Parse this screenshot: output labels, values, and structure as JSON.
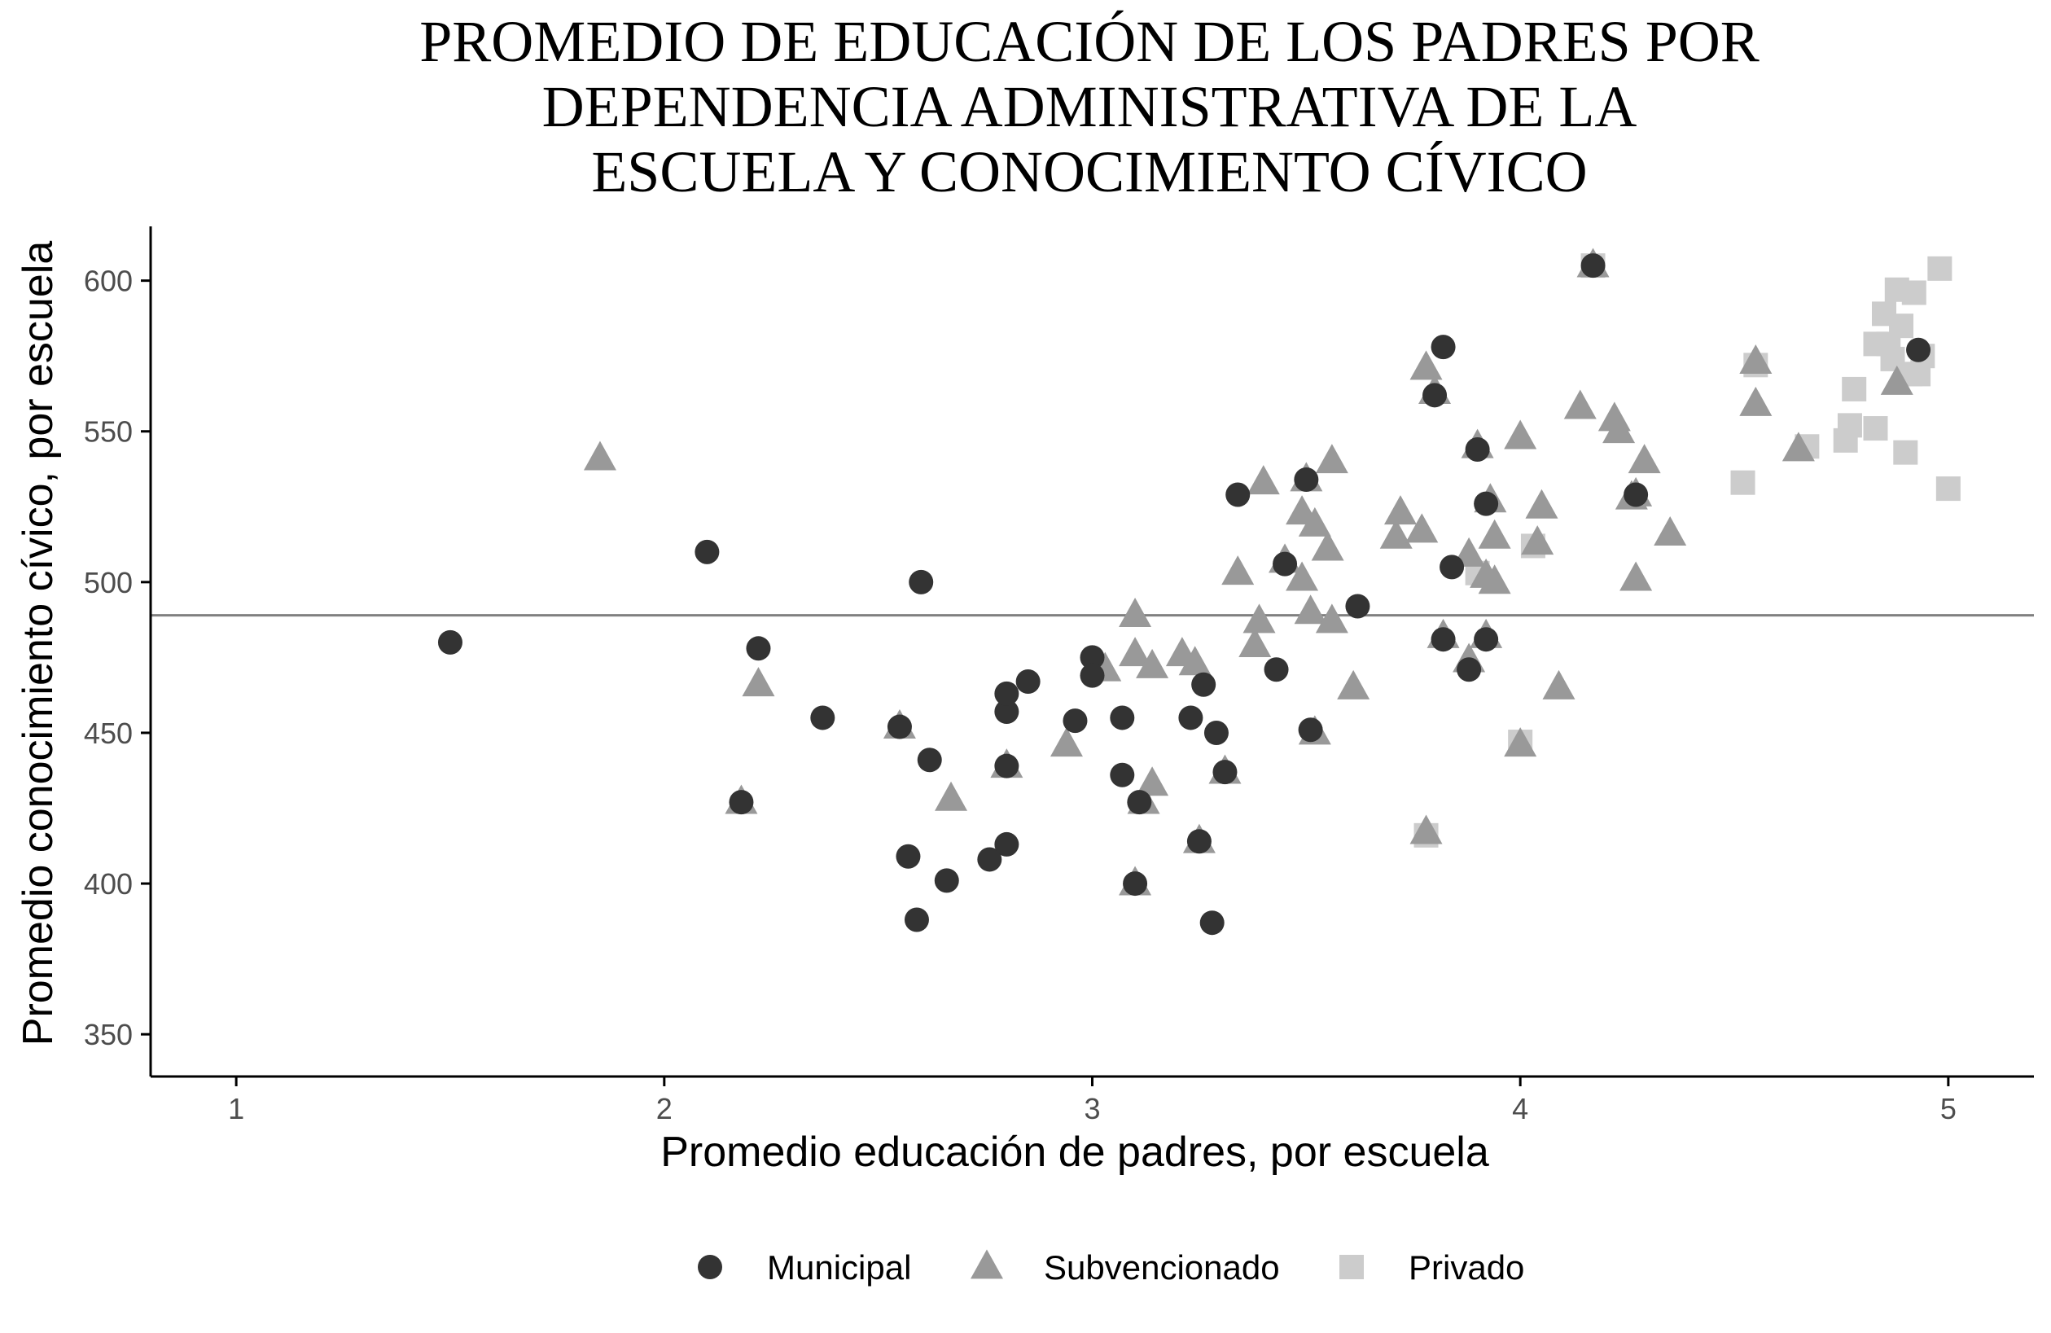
{
  "chart_data": {
    "type": "scatter",
    "title_lines": [
      "PROMEDIO DE EDUCACIÓN DE LOS PADRES POR",
      "DEPENDENCIA ADMINISTRATIVA DE LA",
      "ESCUELA Y CONOCIMIENTO CÍVICO"
    ],
    "xlabel": "Promedio educación de padres, por escuela",
    "ylabel": "Promedio conocimiento cívico, por escuela",
    "xlim": [
      0.8,
      5.2
    ],
    "ylim": [
      336,
      618
    ],
    "xticks": [
      1,
      2,
      3,
      4,
      5
    ],
    "yticks": [
      350,
      400,
      450,
      500,
      550,
      600
    ],
    "reference_line_y": 489,
    "legend_position": "bottom",
    "grid": false,
    "series": [
      {
        "name": "Municipal",
        "shape": "circle",
        "color": "#333333",
        "points": [
          [
            1.5,
            480
          ],
          [
            2.1,
            510
          ],
          [
            2.22,
            478
          ],
          [
            2.37,
            455
          ],
          [
            2.18,
            427
          ],
          [
            2.55,
            452
          ],
          [
            2.6,
            500
          ],
          [
            2.62,
            441
          ],
          [
            2.57,
            409
          ],
          [
            2.59,
            388
          ],
          [
            2.66,
            401
          ],
          [
            2.76,
            408
          ],
          [
            2.8,
            413
          ],
          [
            2.8,
            439
          ],
          [
            2.8,
            457
          ],
          [
            2.8,
            463
          ],
          [
            2.85,
            467
          ],
          [
            2.96,
            454
          ],
          [
            3.0,
            475
          ],
          [
            3.0,
            469
          ],
          [
            3.07,
            455
          ],
          [
            3.07,
            436
          ],
          [
            3.11,
            427
          ],
          [
            3.1,
            400
          ],
          [
            3.23,
            455
          ],
          [
            3.26,
            466
          ],
          [
            3.29,
            450
          ],
          [
            3.25,
            414
          ],
          [
            3.28,
            387
          ],
          [
            3.31,
            437
          ],
          [
            3.34,
            529
          ],
          [
            3.43,
            471
          ],
          [
            3.45,
            506
          ],
          [
            3.5,
            534
          ],
          [
            3.51,
            451
          ],
          [
            3.62,
            492
          ],
          [
            3.8,
            562
          ],
          [
            3.82,
            578
          ],
          [
            3.82,
            481
          ],
          [
            3.84,
            505
          ],
          [
            3.88,
            471
          ],
          [
            3.9,
            544
          ],
          [
            3.92,
            526
          ],
          [
            3.92,
            481
          ],
          [
            4.27,
            529
          ],
          [
            4.17,
            605
          ],
          [
            4.93,
            577
          ]
        ]
      },
      {
        "name": "Subvencionado",
        "shape": "triangle",
        "color": "#999999",
        "points": [
          [
            1.85,
            541
          ],
          [
            2.18,
            427
          ],
          [
            2.22,
            466
          ],
          [
            2.55,
            452
          ],
          [
            2.67,
            428
          ],
          [
            2.8,
            439
          ],
          [
            2.94,
            446
          ],
          [
            3.03,
            471
          ],
          [
            3.1,
            489
          ],
          [
            3.1,
            400
          ],
          [
            3.1,
            476
          ],
          [
            3.12,
            427
          ],
          [
            3.14,
            433
          ],
          [
            3.14,
            472
          ],
          [
            3.21,
            476
          ],
          [
            3.24,
            473
          ],
          [
            3.25,
            414
          ],
          [
            3.31,
            437
          ],
          [
            3.34,
            503
          ],
          [
            3.38,
            479
          ],
          [
            3.39,
            487
          ],
          [
            3.4,
            533
          ],
          [
            3.45,
            507
          ],
          [
            3.49,
            501
          ],
          [
            3.49,
            523
          ],
          [
            3.5,
            534
          ],
          [
            3.52,
            519
          ],
          [
            3.51,
            490
          ],
          [
            3.52,
            450
          ],
          [
            3.55,
            511
          ],
          [
            3.56,
            540
          ],
          [
            3.56,
            487
          ],
          [
            3.61,
            465
          ],
          [
            3.71,
            515
          ],
          [
            3.72,
            523
          ],
          [
            3.77,
            517
          ],
          [
            3.78,
            571
          ],
          [
            3.8,
            563
          ],
          [
            3.82,
            482
          ],
          [
            3.88,
            509
          ],
          [
            3.88,
            474
          ],
          [
            3.9,
            545
          ],
          [
            3.92,
            502
          ],
          [
            3.93,
            527
          ],
          [
            3.94,
            515
          ],
          [
            3.94,
            500
          ],
          [
            3.92,
            482
          ],
          [
            4.0,
            548
          ],
          [
            4.0,
            446
          ],
          [
            4.04,
            513
          ],
          [
            4.05,
            525
          ],
          [
            4.09,
            465
          ],
          [
            4.14,
            558
          ],
          [
            4.17,
            605
          ],
          [
            4.22,
            554
          ],
          [
            4.23,
            550
          ],
          [
            4.26,
            528
          ],
          [
            4.27,
            501
          ],
          [
            4.27,
            529
          ],
          [
            4.29,
            540
          ],
          [
            4.35,
            516
          ],
          [
            4.55,
            573
          ],
          [
            4.55,
            559
          ],
          [
            4.65,
            544
          ],
          [
            4.88,
            566
          ],
          [
            3.78,
            417
          ]
        ]
      },
      {
        "name": "Privado",
        "shape": "square",
        "color": "#cccccc",
        "points": [
          [
            3.78,
            416
          ],
          [
            3.9,
            503
          ],
          [
            4.0,
            447
          ],
          [
            4.03,
            512
          ],
          [
            4.17,
            605
          ],
          [
            4.52,
            533
          ],
          [
            4.55,
            572
          ],
          [
            4.67,
            545
          ],
          [
            4.76,
            547
          ],
          [
            4.77,
            552
          ],
          [
            4.78,
            564
          ],
          [
            4.83,
            579
          ],
          [
            4.83,
            551
          ],
          [
            4.85,
            589
          ],
          [
            4.86,
            579
          ],
          [
            4.87,
            574
          ],
          [
            4.88,
            597
          ],
          [
            4.89,
            585
          ],
          [
            4.9,
            543
          ],
          [
            4.91,
            569
          ],
          [
            4.92,
            596
          ],
          [
            4.93,
            569
          ],
          [
            4.94,
            575
          ],
          [
            4.98,
            604
          ],
          [
            5.0,
            531
          ]
        ]
      }
    ]
  },
  "legend": {
    "items": [
      {
        "label": "Municipal",
        "shape": "circle",
        "color": "#333333"
      },
      {
        "label": "Subvencionado",
        "shape": "triangle",
        "color": "#999999"
      },
      {
        "label": "Privado",
        "shape": "square",
        "color": "#cccccc"
      }
    ]
  },
  "colors": {
    "axis": "#000000",
    "reference_line": "#808080"
  }
}
